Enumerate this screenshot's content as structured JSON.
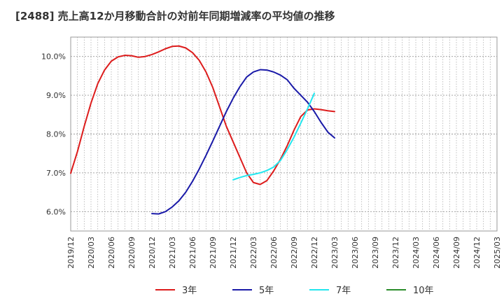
{
  "chart_data": {
    "type": "line",
    "title": "[2488]  売上高12か月移動合計の対前年同期増減率の平均値の推移",
    "xlabel": "",
    "ylabel": "",
    "ylim": [
      5.5,
      10.5
    ],
    "y_ticks": [
      6.0,
      7.0,
      8.0,
      9.0,
      10.0
    ],
    "y_tick_labels": [
      "6.0%",
      "7.0%",
      "8.0%",
      "9.0%",
      "10.0%"
    ],
    "x_tick_labels": [
      "2019/12",
      "2020/03",
      "2020/06",
      "2020/09",
      "2020/12",
      "2021/03",
      "2021/06",
      "2021/09",
      "2021/12",
      "2022/03",
      "2022/06",
      "2022/09",
      "2022/12",
      "2023/03",
      "2023/06",
      "2023/09",
      "2023/12",
      "2024/03",
      "2024/06",
      "2024/09",
      "2024/12",
      "2025/03"
    ],
    "grid": true,
    "legend_position": "bottom",
    "series": [
      {
        "name": "3年",
        "color": "#dd1c1c",
        "points": [
          [
            0,
            6.99
          ],
          [
            1,
            7.55
          ],
          [
            2,
            8.2
          ],
          [
            3,
            8.8
          ],
          [
            4,
            9.3
          ],
          [
            5,
            9.65
          ],
          [
            6,
            9.88
          ],
          [
            7,
            9.99
          ],
          [
            8,
            10.03
          ],
          [
            9,
            10.02
          ],
          [
            10,
            9.98
          ],
          [
            11,
            10.0
          ],
          [
            12,
            10.05
          ],
          [
            13,
            10.12
          ],
          [
            14,
            10.2
          ],
          [
            15,
            10.26
          ],
          [
            16,
            10.27
          ],
          [
            17,
            10.22
          ],
          [
            18,
            10.1
          ],
          [
            19,
            9.9
          ],
          [
            20,
            9.6
          ],
          [
            21,
            9.2
          ],
          [
            22,
            8.7
          ],
          [
            23,
            8.2
          ],
          [
            24,
            7.8
          ],
          [
            25,
            7.4
          ],
          [
            26,
            7.0
          ],
          [
            27,
            6.75
          ],
          [
            28,
            6.7
          ],
          [
            29,
            6.8
          ],
          [
            30,
            7.05
          ],
          [
            31,
            7.35
          ],
          [
            32,
            7.7
          ],
          [
            33,
            8.1
          ],
          [
            34,
            8.45
          ],
          [
            35,
            8.62
          ],
          [
            36,
            8.65
          ],
          [
            37,
            8.63
          ],
          [
            38,
            8.6
          ],
          [
            39,
            8.58
          ]
        ]
      },
      {
        "name": "5年",
        "color": "#1a1aa8",
        "points": [
          [
            12,
            5.95
          ],
          [
            13,
            5.94
          ],
          [
            14,
            6.0
          ],
          [
            15,
            6.12
          ],
          [
            16,
            6.28
          ],
          [
            17,
            6.5
          ],
          [
            18,
            6.78
          ],
          [
            19,
            7.1
          ],
          [
            20,
            7.45
          ],
          [
            21,
            7.82
          ],
          [
            22,
            8.2
          ],
          [
            23,
            8.58
          ],
          [
            24,
            8.92
          ],
          [
            25,
            9.22
          ],
          [
            26,
            9.47
          ],
          [
            27,
            9.6
          ],
          [
            28,
            9.66
          ],
          [
            29,
            9.65
          ],
          [
            30,
            9.6
          ],
          [
            31,
            9.52
          ],
          [
            32,
            9.4
          ],
          [
            33,
            9.18
          ],
          [
            34,
            9.0
          ],
          [
            35,
            8.82
          ],
          [
            36,
            8.58
          ],
          [
            37,
            8.3
          ],
          [
            38,
            8.05
          ],
          [
            39,
            7.9
          ]
        ]
      },
      {
        "name": "7年",
        "color": "#22e6ee",
        "points": [
          [
            24,
            6.82
          ],
          [
            25,
            6.88
          ],
          [
            26,
            6.93
          ],
          [
            27,
            6.96
          ],
          [
            28,
            7.0
          ],
          [
            29,
            7.06
          ],
          [
            30,
            7.15
          ],
          [
            31,
            7.32
          ],
          [
            32,
            7.6
          ],
          [
            33,
            7.92
          ],
          [
            34,
            8.28
          ],
          [
            35,
            8.65
          ],
          [
            36,
            9.05
          ]
        ]
      },
      {
        "name": "10年",
        "color": "#2a8c2a",
        "points": []
      }
    ]
  }
}
